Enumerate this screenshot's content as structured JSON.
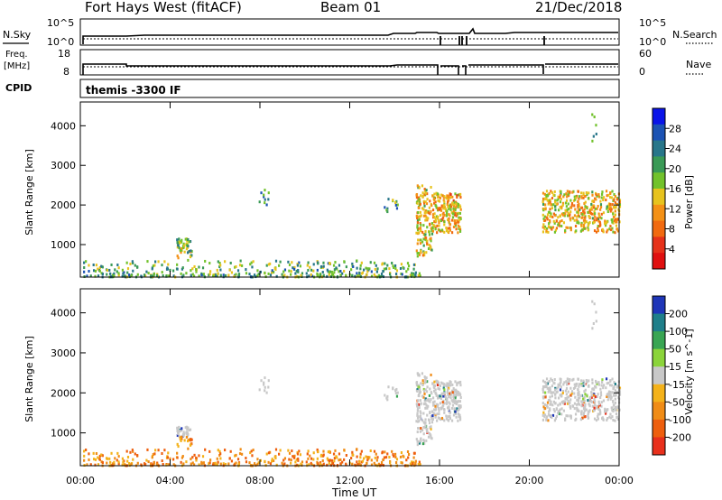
{
  "header": {
    "station": "Fort Hays West (fitACF)",
    "beam": "Beam 01",
    "date": "21/Dec/2018"
  },
  "noise_panel": {
    "left_label": "N.Sky",
    "right_label": "N.Search",
    "left_ticks": [
      "10^5",
      "10^0"
    ],
    "right_ticks": [
      "10^5",
      "10^0"
    ]
  },
  "freq_panel": {
    "left_label_top": "Freq.",
    "left_label_unit": "[MHz]",
    "left_ticks": [
      "18",
      "8"
    ],
    "right_label": "Nave",
    "right_ticks": [
      "60",
      "0"
    ]
  },
  "cpid_panel": {
    "label": "CPID",
    "text": "themis -3300 IF"
  },
  "chart_data": [
    {
      "type": "heatmap",
      "title": "",
      "ylabel": "Slant Range [km]",
      "ylim": [
        180,
        4600
      ],
      "yticks": [
        "1000",
        "2000",
        "3000",
        "4000"
      ],
      "colorbar": {
        "label": "Power [dB]",
        "ticks": [
          "4",
          "8",
          "12",
          "16",
          "20",
          "24",
          "28"
        ],
        "colors": [
          "#0a14e8",
          "#1c53b4",
          "#28768a",
          "#3a9a56",
          "#72c22c",
          "#e7c31e",
          "#f49116",
          "#f16a10",
          "#e6321a",
          "#e01010"
        ]
      }
    },
    {
      "type": "heatmap",
      "title": "",
      "xlabel": "Time UT",
      "ylabel": "Slant Range [km]",
      "ylim": [
        180,
        4600
      ],
      "xticks": [
        "00:00",
        "04:00",
        "08:00",
        "12:00",
        "16:00",
        "20:00",
        "00:00"
      ],
      "yticks": [
        "1000",
        "2000",
        "3000",
        "4000"
      ],
      "colorbar": {
        "label": "Velocity [m s^-1]",
        "ticks": [
          "200",
          "100",
          "50",
          "15",
          "-15",
          "-50",
          "-100",
          "-200"
        ],
        "colors": [
          "#1f36b8",
          "#1f7f8a",
          "#39a553",
          "#8bd43a",
          "#c8c8c8",
          "#f4b21a",
          "#f08c16",
          "#ee5f0e",
          "#e8301c"
        ],
        "ground_scatter_color": "#c8c8c8"
      }
    }
  ]
}
